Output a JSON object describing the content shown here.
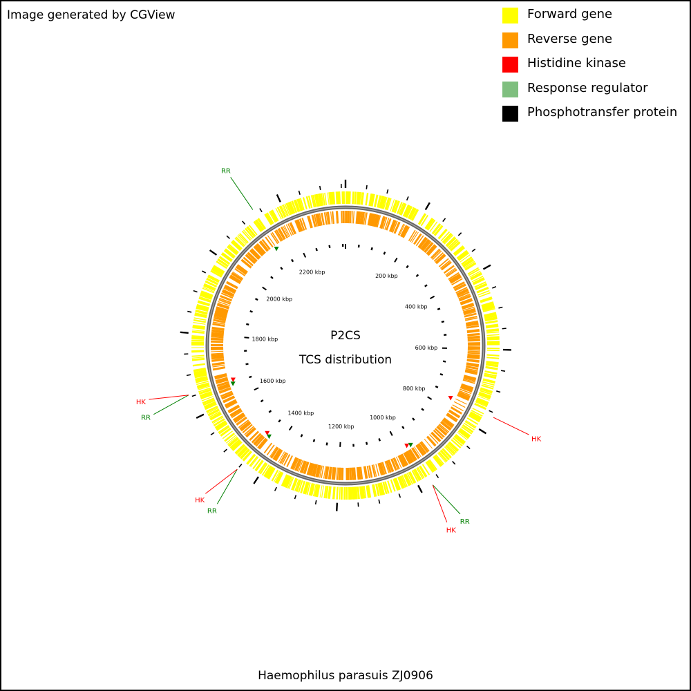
{
  "credit": "Image generated by CGView",
  "legend": [
    {
      "label": "Forward gene",
      "color": "#ffff00"
    },
    {
      "label": "Reverse gene",
      "color": "#ff9900"
    },
    {
      "label": "Histidine kinase",
      "color": "#ff0000"
    },
    {
      "label": "Response regulator",
      "color": "#7fbf7f"
    },
    {
      "label": "Phosphotransfer protein",
      "color": "#000000"
    }
  ],
  "center": {
    "line1": "P2CS",
    "line2": "TCS distribution"
  },
  "organism": "Haemophilus parasuis ZJ0906",
  "ticks": [
    "200 kbp",
    "400 kbp",
    "600 kbp",
    "800 kbp",
    "1000 kbp",
    "1200 kbp",
    "1400 kbp",
    "1600 kbp",
    "1800 kbp",
    "2000 kbp",
    "2200 kbp"
  ],
  "genome_kbp": 2360,
  "tcs_genes": [
    {
      "kbp": 760,
      "labels": [
        "HK"
      ]
    },
    {
      "kbp": 970,
      "labels": [
        "RR",
        "HK"
      ]
    },
    {
      "kbp": 1450,
      "labels": [
        "RR",
        "HK"
      ]
    },
    {
      "kbp": 1655,
      "labels": [
        "RR",
        "HK"
      ]
    },
    {
      "kbp": 2135,
      "labels": [
        "RR"
      ]
    }
  ]
}
